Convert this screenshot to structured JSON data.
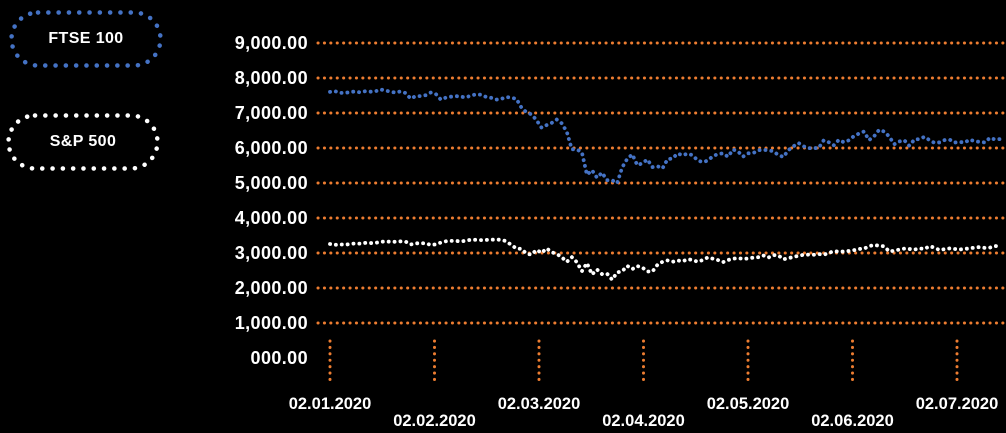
{
  "legend": {
    "items": [
      {
        "label": "FTSE 100",
        "color": "#4472C4"
      },
      {
        "label": "S&P 500",
        "color": "#FFFFFF"
      }
    ]
  },
  "chart_data": {
    "type": "line",
    "title": "",
    "xlabel": "",
    "ylabel": "",
    "ylim": [
      0,
      9000
    ],
    "grid_color": "#ED7D31",
    "grid_style": "dotted",
    "background": "#000000",
    "text_color": "#FFFFFF",
    "legend_position": "left",
    "x_tick_labels": [
      "02.01.2020",
      "02.02.2020",
      "02.03.2020",
      "02.04.2020",
      "02.05.2020",
      "02.06.2020",
      "02.07.2020"
    ],
    "y_tick_values": [
      0,
      1000,
      2000,
      3000,
      4000,
      5000,
      6000,
      7000,
      8000,
      9000
    ],
    "y_tick_labels": [
      "000.00",
      "1,000.00",
      "2,000.00",
      "3,000.00",
      "4,000.00",
      "5,000.00",
      "6,000.00",
      "7,000.00",
      "8,000.00",
      "9,000.00"
    ],
    "series": [
      {
        "name": "FTSE 100",
        "color": "#4472C4",
        "values": [
          7604,
          7623,
          7573,
          7574,
          7598,
          7617,
          7588,
          7622,
          7610,
          7617,
          7674,
          7642,
          7610,
          7584,
          7618,
          7571,
          7412,
          7481,
          7484,
          7508,
          7585,
          7542,
          7382,
          7439,
          7466,
          7482,
          7467,
          7446,
          7499,
          7534,
          7523,
          7457,
          7433,
          7382,
          7403,
          7457,
          7437,
          7404,
          7157,
          7018,
          6959,
          6796,
          6581,
          6655,
          6718,
          6815,
          6705,
          6462,
          5966,
          5960,
          5877,
          5237,
          5366,
          5151,
          5294,
          5081,
          5080,
          4994,
          5446,
          5688,
          5816,
          5510,
          5564,
          5672,
          5455,
          5480,
          5416,
          5678,
          5704,
          5843,
          5792,
          5843,
          5791,
          5642,
          5598,
          5641,
          5770,
          5826,
          5849,
          5752,
          5958,
          5901,
          5753,
          5849,
          5854,
          5936,
          5946,
          5936,
          5905,
          5799,
          5742,
          5939,
          6049,
          6144,
          6049,
          5993,
          6001,
          5997,
          6220,
          6166,
          6077,
          6232,
          6166,
          6220,
          6341,
          6412,
          6472,
          6226,
          6335,
          6519,
          6472,
          6329,
          6105,
          6185,
          6224,
          6064,
          6242,
          6253,
          6320,
          6225,
          6147,
          6159,
          6226,
          6240,
          6157,
          6170,
          6158,
          6240,
          6190,
          6176,
          6156,
          6292,
          6242,
          6253
        ]
      },
      {
        "name": "S&P 500",
        "color": "#FFFFFF",
        "values": [
          3258,
          3235,
          3246,
          3237,
          3253,
          3275,
          3265,
          3289,
          3283,
          3289,
          3317,
          3330,
          3320,
          3321,
          3330,
          3326,
          3244,
          3276,
          3273,
          3284,
          3226,
          3249,
          3298,
          3335,
          3346,
          3345,
          3328,
          3353,
          3380,
          3378,
          3370,
          3373,
          3380,
          3386,
          3373,
          3338,
          3226,
          3128,
          3116,
          2979,
          2954,
          3090,
          3003,
          3130,
          3024,
          2972,
          2882,
          2746,
          2882,
          2741,
          2481,
          2711,
          2386,
          2529,
          2398,
          2409,
          2237,
          2447,
          2476,
          2630,
          2541,
          2627,
          2585,
          2471,
          2470,
          2659,
          2750,
          2790,
          2750,
          2790,
          2761,
          2823,
          2800,
          2749,
          2800,
          2875,
          2837,
          2798,
          2737,
          2799,
          2836,
          2853,
          2830,
          2843,
          2868,
          2881,
          2930,
          2870,
          2940,
          2930,
          2820,
          2852,
          2890,
          2920,
          2950,
          2955,
          2949,
          2972,
          2949,
          2999,
          3054,
          3036,
          3044,
          3056,
          3081,
          3113,
          3122,
          3194,
          3232,
          3207,
          3190,
          3042,
          3067,
          3098,
          3125,
          3114,
          3098,
          3131,
          3115,
          3193,
          3153,
          3083,
          3112,
          3132,
          3115,
          3100,
          3116,
          3130,
          3156,
          3169,
          3145,
          3155,
          3200,
          3185
        ]
      }
    ]
  }
}
